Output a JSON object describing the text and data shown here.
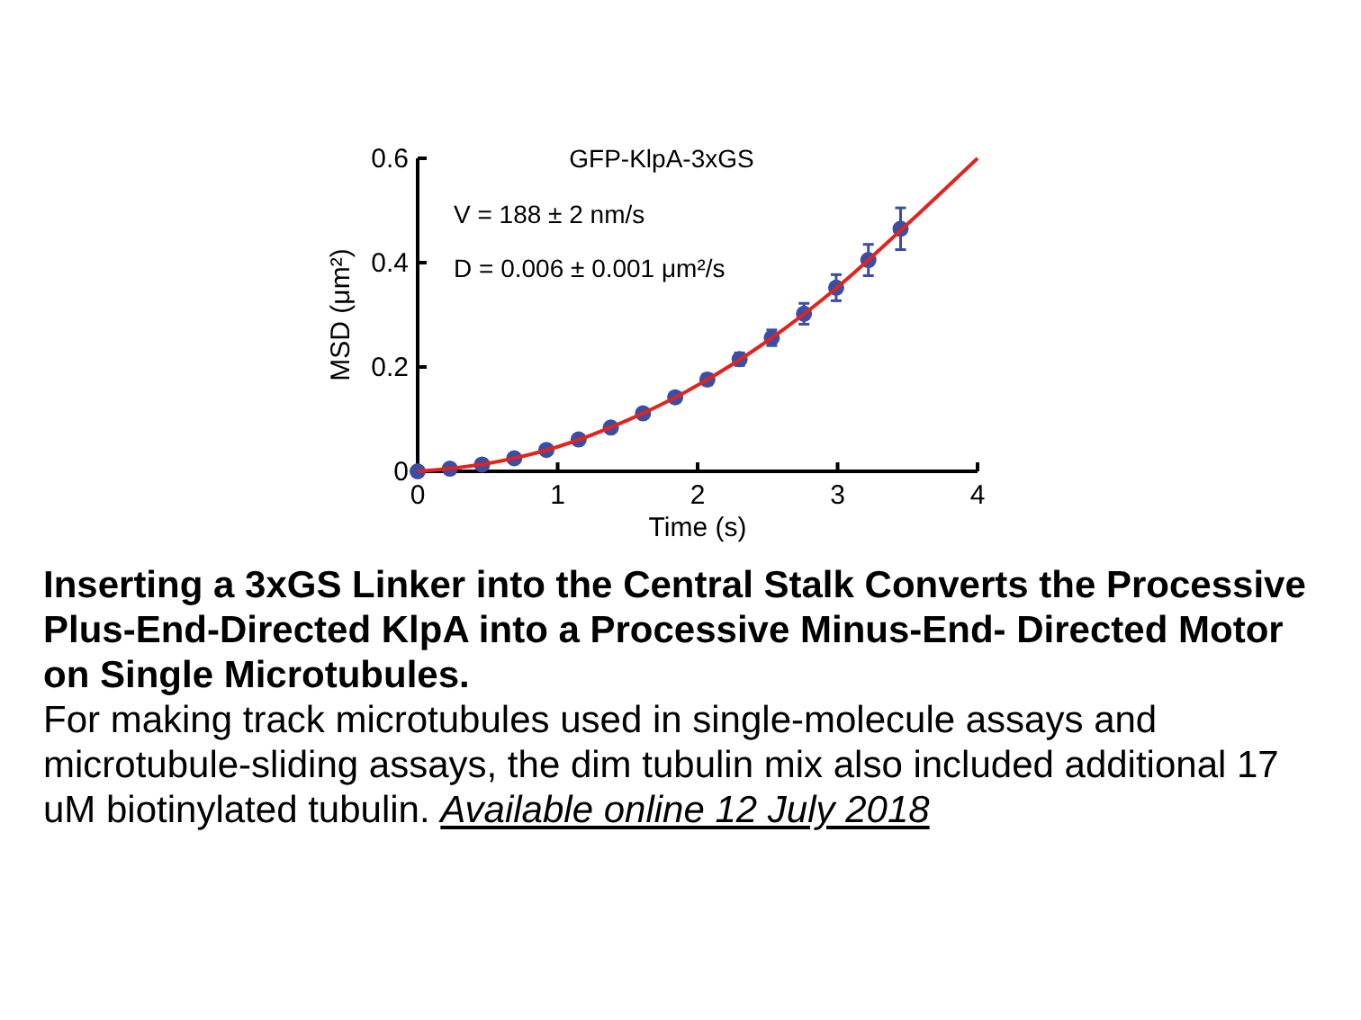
{
  "chart_data": {
    "type": "scatter",
    "title": "GFP-KlpA-3xGS",
    "xlabel": "Time (s)",
    "ylabel": "MSD (μm²)",
    "x": [
      0,
      0.23,
      0.46,
      0.69,
      0.92,
      1.15,
      1.38,
      1.61,
      1.84,
      2.07,
      2.3,
      2.53,
      2.76,
      2.99,
      3.22,
      3.45
    ],
    "series": [
      {
        "marker": "circle",
        "color": "#3b4ea3",
        "values": [
          0,
          0.005,
          0.013,
          0.025,
          0.041,
          0.061,
          0.084,
          0.111,
          0.142,
          0.176,
          0.215,
          0.256,
          0.302,
          0.352,
          0.405,
          0.465
        ],
        "errors": [
          null,
          null,
          null,
          0.005,
          0.005,
          0.006,
          0.006,
          0.007,
          0.008,
          0.01,
          0.012,
          0.015,
          0.02,
          0.025,
          0.03,
          0.04
        ]
      },
      {
        "type": "line",
        "marker": "none",
        "color": "#e0241f",
        "x": [
          0,
          0.5,
          1,
          1.5,
          2,
          2.5,
          3,
          3.5,
          4
        ],
        "values": [
          0,
          0.015,
          0.047,
          0.098,
          0.165,
          0.25,
          0.353,
          0.474,
          0.6
        ]
      }
    ],
    "xlim": [
      0,
      4
    ],
    "xticks": [
      0,
      1,
      2,
      3,
      4
    ],
    "ylim": [
      0,
      0.6
    ],
    "yticks": [
      0,
      0.2,
      0.4,
      0.6
    ],
    "grid": false,
    "annotations": [
      "V = 188 ± 2 nm/s",
      "D = 0.006 ± 0.001 μm²/s",
      "Inserting a 3xGS Linker into the Central Stalk Converts the Processive Plus-End-Directed KlpA into a Processive Minus-End- Directed Motor on Single Microtubules.",
      "For making track microtubules used in single-molecule assays and microtubule-sliding assays, the dim tubulin mix also included additional 17 uM biotinylated tubulin.",
      "Available online 12 July 2018"
    ]
  }
}
